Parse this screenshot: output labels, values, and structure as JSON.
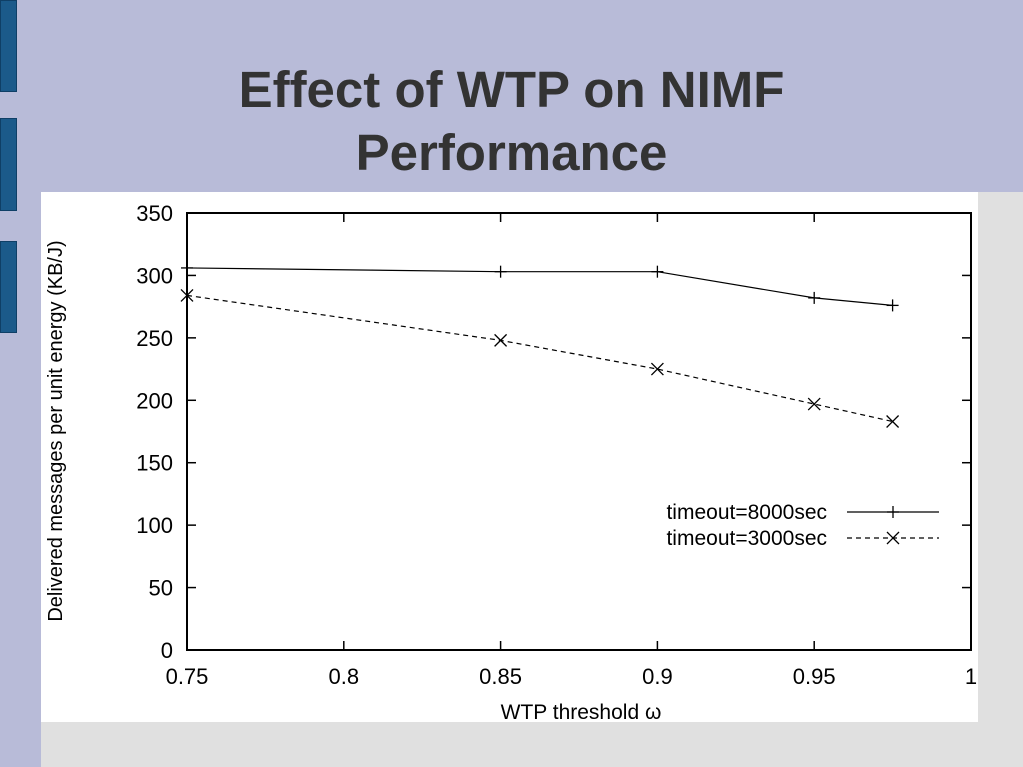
{
  "slide": {
    "title_line1": "Effect of WTP on NIMF",
    "title_line2": "Performance"
  },
  "colors": {
    "background": "#b8bbd8",
    "accent_bar": "#1b5a8a",
    "title_text": "#333333"
  },
  "chart_data": {
    "type": "line",
    "xlabel": "WTP threshold ω",
    "ylabel": "Delivered messages per unit energy (KB/J)",
    "xlim": [
      0.75,
      1
    ],
    "ylim": [
      0,
      350
    ],
    "x_ticks": [
      0.75,
      0.8,
      0.85,
      0.9,
      0.95,
      1
    ],
    "x_tick_labels": [
      "0.75",
      "0.8",
      "0.85",
      "0.9",
      "0.95",
      "1"
    ],
    "y_ticks": [
      0,
      50,
      100,
      150,
      200,
      250,
      300,
      350
    ],
    "y_tick_labels": [
      "0",
      "50",
      "100",
      "150",
      "200",
      "250",
      "300",
      "350"
    ],
    "grid": false,
    "legend_position": "right",
    "series": [
      {
        "name": "timeout=8000sec",
        "marker": "plus",
        "line_style": "solid",
        "x": [
          0.75,
          0.85,
          0.9,
          0.95,
          0.975
        ],
        "y": [
          306,
          303,
          303,
          282,
          276
        ]
      },
      {
        "name": "timeout=3000sec",
        "marker": "cross",
        "line_style": "dashed",
        "x": [
          0.75,
          0.85,
          0.9,
          0.95,
          0.975
        ],
        "y": [
          284,
          248,
          225,
          197,
          183
        ]
      }
    ]
  }
}
